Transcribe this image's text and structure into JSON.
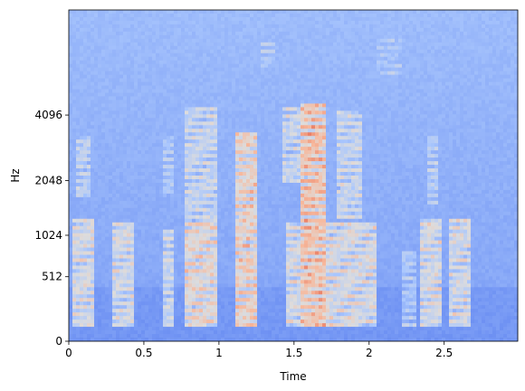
{
  "chart_data": {
    "type": "heatmap",
    "subtype": "mel-spectrogram",
    "xlabel": "Time",
    "ylabel": "Hz",
    "xlim": [
      0,
      2.99
    ],
    "x_ticks": [
      {
        "value": 0,
        "label": "0"
      },
      {
        "value": 0.5,
        "label": "0.5"
      },
      {
        "value": 1,
        "label": "1"
      },
      {
        "value": 1.5,
        "label": "1.5"
      },
      {
        "value": 2,
        "label": "2"
      },
      {
        "value": 2.5,
        "label": "2.5"
      }
    ],
    "y_scale": "mel",
    "y_ticks": [
      {
        "value": 0,
        "label": "0"
      },
      {
        "value": 512,
        "label": "512"
      },
      {
        "value": 1024,
        "label": "1024"
      },
      {
        "value": 2048,
        "label": "2048"
      },
      {
        "value": 4096,
        "label": "4096"
      }
    ],
    "colormap": "coolwarm",
    "colormap_stops": [
      "#3b4cc0",
      "#6f92f3",
      "#aac7fd",
      "#dddcdc",
      "#f7b89c",
      "#e7745b",
      "#b40426"
    ],
    "background_color": "#8fb0ff",
    "grid": false,
    "legend": "none",
    "energy_events": [
      {
        "t0": 0.03,
        "t1": 0.17,
        "f0": 80,
        "f1": 1300,
        "level": 0.62
      },
      {
        "t0": 0.05,
        "t1": 0.15,
        "f0": 1700,
        "f1": 3300,
        "level": 0.5
      },
      {
        "t0": 0.28,
        "t1": 0.44,
        "f0": 80,
        "f1": 1200,
        "level": 0.6
      },
      {
        "t0": 0.62,
        "t1": 0.7,
        "f0": 80,
        "f1": 1100,
        "level": 0.55
      },
      {
        "t0": 0.63,
        "t1": 0.7,
        "f0": 1700,
        "f1": 3300,
        "level": 0.45
      },
      {
        "t0": 0.76,
        "t1": 1.0,
        "f0": 80,
        "f1": 1200,
        "level": 0.68
      },
      {
        "t0": 0.78,
        "t1": 0.98,
        "f0": 1100,
        "f1": 4500,
        "level": 0.55
      },
      {
        "t0": 1.1,
        "t1": 1.25,
        "f0": 80,
        "f1": 3500,
        "level": 0.72
      },
      {
        "t0": 1.45,
        "t1": 1.6,
        "f0": 80,
        "f1": 1200,
        "level": 0.6
      },
      {
        "t0": 1.42,
        "t1": 1.55,
        "f0": 2000,
        "f1": 4500,
        "level": 0.55
      },
      {
        "t0": 1.55,
        "t1": 1.72,
        "f0": 80,
        "f1": 4600,
        "level": 0.8
      },
      {
        "t0": 1.72,
        "t1": 2.05,
        "f0": 80,
        "f1": 1200,
        "level": 0.62
      },
      {
        "t0": 1.78,
        "t1": 1.95,
        "f0": 1300,
        "f1": 4300,
        "level": 0.55
      },
      {
        "t0": 2.23,
        "t1": 2.32,
        "f0": 80,
        "f1": 800,
        "level": 0.45
      },
      {
        "t0": 2.35,
        "t1": 2.48,
        "f0": 80,
        "f1": 1300,
        "level": 0.62
      },
      {
        "t0": 2.38,
        "t1": 2.46,
        "f0": 1500,
        "f1": 3300,
        "level": 0.48
      },
      {
        "t0": 2.52,
        "t1": 2.68,
        "f0": 80,
        "f1": 1300,
        "level": 0.6
      },
      {
        "t0": 1.27,
        "t1": 1.38,
        "f0": 6500,
        "f1": 8500,
        "level": 0.45
      },
      {
        "t0": 2.05,
        "t1": 2.22,
        "f0": 6000,
        "f1": 8500,
        "level": 0.42
      }
    ]
  }
}
